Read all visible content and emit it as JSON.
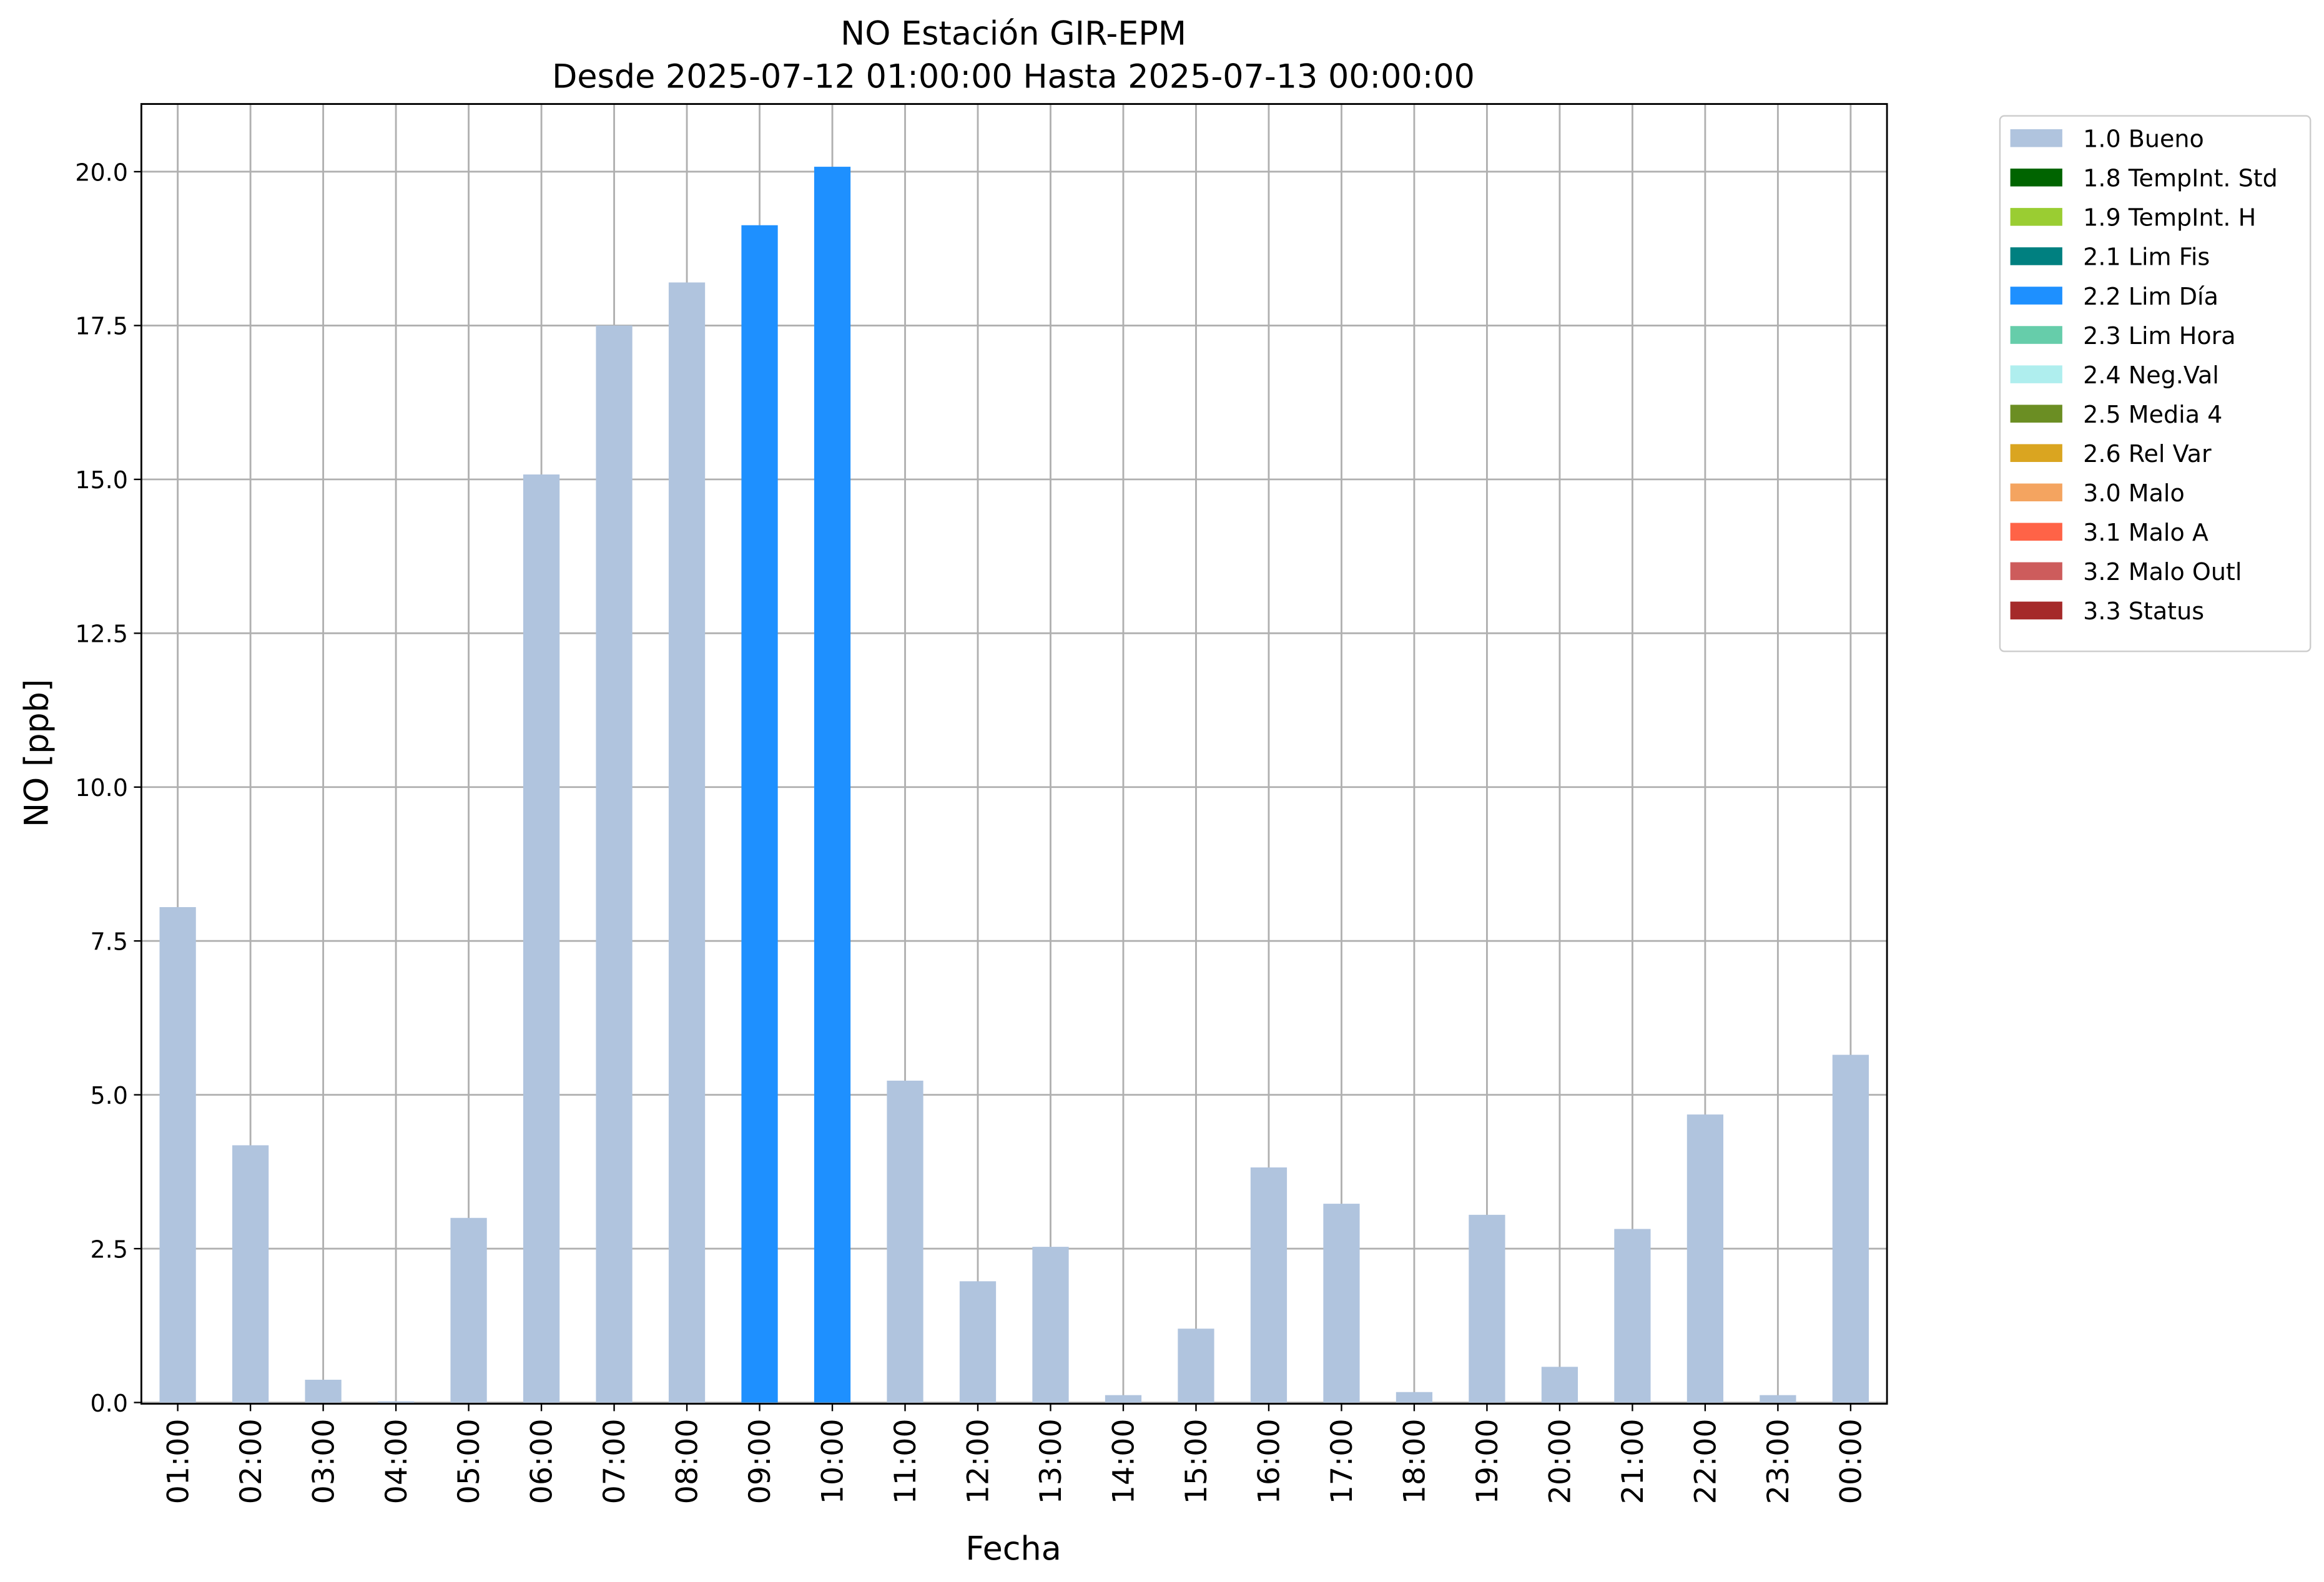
{
  "chart_data": {
    "type": "stacked_bar",
    "title": "NO Estación GIR-EPM",
    "subtitle": "Desde 2025-07-12 01:00:00 Hasta 2025-07-13 00:00:00",
    "xlabel": "Fecha",
    "ylabel": "NO [ppb]",
    "categories": [
      "01:00",
      "02:00",
      "03:00",
      "04:00",
      "05:00",
      "06:00",
      "07:00",
      "08:00",
      "09:00",
      "10:00",
      "11:00",
      "12:00",
      "13:00",
      "14:00",
      "15:00",
      "16:00",
      "17:00",
      "18:00",
      "19:00",
      "20:00",
      "21:00",
      "22:00",
      "23:00",
      "00:00"
    ],
    "series": [
      {
        "name": "1.0 Bueno",
        "color": "#b0c4de",
        "values": [
          8.05,
          4.18,
          0.37,
          0.02,
          3.0,
          15.08,
          17.5,
          18.2,
          null,
          null,
          5.23,
          1.97,
          2.53,
          0.12,
          1.2,
          3.82,
          3.23,
          0.17,
          3.05,
          0.58,
          2.82,
          4.68,
          0.12,
          5.65
        ]
      },
      {
        "name": "1.8 TempInt. Std",
        "color": "#006400",
        "values": [
          null,
          null,
          null,
          null,
          null,
          null,
          null,
          null,
          null,
          null,
          null,
          null,
          null,
          null,
          null,
          null,
          null,
          null,
          null,
          null,
          null,
          null,
          null,
          null
        ]
      },
      {
        "name": "1.9 TempInt. H",
        "color": "#9acd32",
        "values": [
          null,
          null,
          null,
          null,
          null,
          null,
          null,
          null,
          null,
          null,
          null,
          null,
          null,
          null,
          null,
          null,
          null,
          null,
          null,
          null,
          null,
          null,
          null,
          null
        ]
      },
      {
        "name": "2.1 Lim Fis",
        "color": "#008080",
        "values": [
          null,
          null,
          null,
          null,
          null,
          null,
          null,
          null,
          null,
          null,
          null,
          null,
          null,
          null,
          null,
          null,
          null,
          null,
          null,
          null,
          null,
          null,
          null,
          null
        ]
      },
      {
        "name": "2.2 Lim Día",
        "color": "#1e90ff",
        "values": [
          null,
          null,
          null,
          null,
          null,
          null,
          null,
          null,
          19.13,
          20.08,
          null,
          null,
          null,
          null,
          null,
          null,
          null,
          null,
          null,
          null,
          null,
          null,
          null,
          null
        ]
      },
      {
        "name": "2.3 Lim Hora",
        "color": "#66cdaa",
        "values": [
          null,
          null,
          null,
          null,
          null,
          null,
          null,
          null,
          null,
          null,
          null,
          null,
          null,
          null,
          null,
          null,
          null,
          null,
          null,
          null,
          null,
          null,
          null,
          null
        ]
      },
      {
        "name": "2.4 Neg.Val",
        "color": "#afeeee",
        "values": [
          null,
          null,
          null,
          null,
          null,
          null,
          null,
          null,
          null,
          null,
          null,
          null,
          null,
          null,
          null,
          null,
          null,
          null,
          null,
          null,
          null,
          null,
          null,
          null
        ]
      },
      {
        "name": "2.5 Media 4",
        "color": "#6b8e23",
        "values": [
          null,
          null,
          null,
          null,
          null,
          null,
          null,
          null,
          null,
          null,
          null,
          null,
          null,
          null,
          null,
          null,
          null,
          null,
          null,
          null,
          null,
          null,
          null,
          null
        ]
      },
      {
        "name": "2.6 Rel Var",
        "color": "#daa520",
        "values": [
          null,
          null,
          null,
          null,
          null,
          null,
          null,
          null,
          null,
          null,
          null,
          null,
          null,
          null,
          null,
          null,
          null,
          null,
          null,
          null,
          null,
          null,
          null,
          null
        ]
      },
      {
        "name": "3.0 Malo",
        "color": "#f4a460",
        "values": [
          null,
          null,
          null,
          null,
          null,
          null,
          null,
          null,
          null,
          null,
          null,
          null,
          null,
          null,
          null,
          null,
          null,
          null,
          null,
          null,
          null,
          null,
          null,
          null
        ]
      },
      {
        "name": "3.1 Malo A",
        "color": "#ff6347",
        "values": [
          null,
          null,
          null,
          null,
          null,
          null,
          null,
          null,
          null,
          null,
          null,
          null,
          null,
          null,
          null,
          null,
          null,
          null,
          null,
          null,
          null,
          null,
          null,
          null
        ]
      },
      {
        "name": "3.2 Malo Outl",
        "color": "#cd5c5c",
        "values": [
          null,
          null,
          null,
          null,
          null,
          null,
          null,
          null,
          null,
          null,
          null,
          null,
          null,
          null,
          null,
          null,
          null,
          null,
          null,
          null,
          null,
          null,
          null,
          null
        ]
      },
      {
        "name": "3.3 Status",
        "color": "#a52a2a",
        "values": [
          null,
          null,
          null,
          null,
          null,
          null,
          null,
          null,
          null,
          null,
          null,
          null,
          null,
          null,
          null,
          null,
          null,
          null,
          null,
          null,
          null,
          null,
          null,
          null
        ]
      }
    ],
    "ylim": [
      -0.02,
      21.1
    ],
    "yticks": [
      {
        "value": 0,
        "label": "0.0"
      },
      2.5,
      {
        "value": 5,
        "label": "5.0"
      },
      7.5,
      {
        "value": 10,
        "label": "10.0"
      },
      12.5,
      {
        "value": 15,
        "label": "15.0"
      },
      17.5,
      {
        "value": 20,
        "label": "20.0"
      }
    ],
    "grid": true,
    "legend": "outside upper right"
  }
}
